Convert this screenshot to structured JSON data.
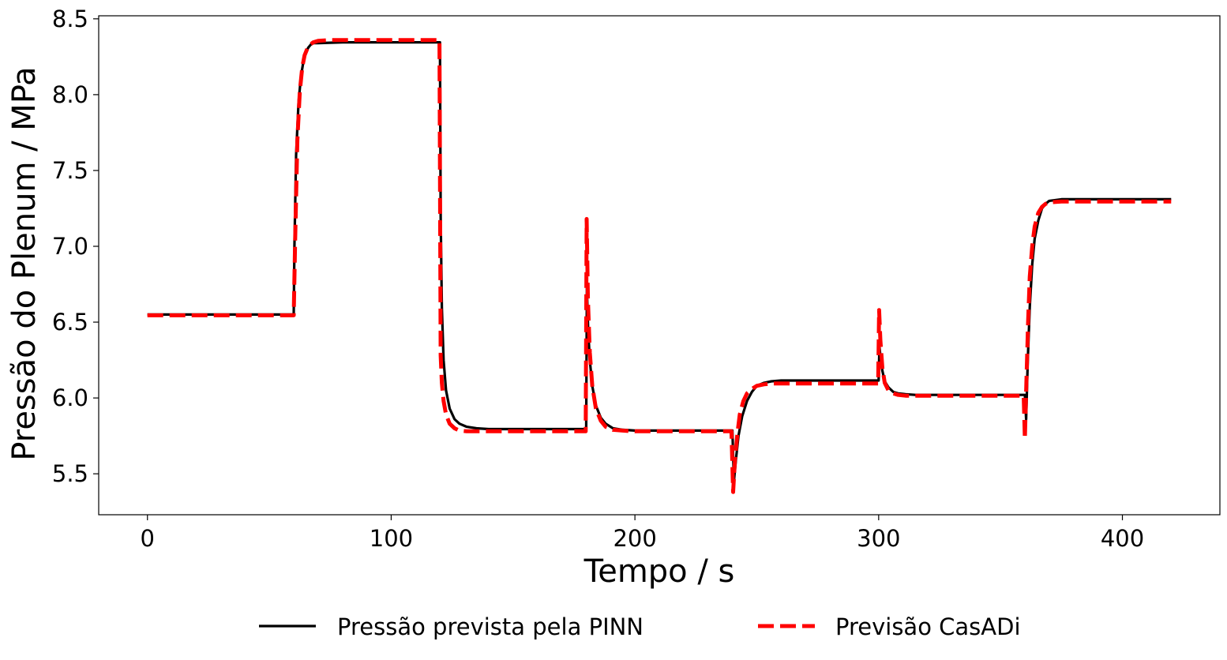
{
  "chart_data": {
    "type": "line",
    "title": "",
    "xlabel": "Tempo / s",
    "ylabel": "Pressão do Plenum / MPa",
    "xlim": [
      -20,
      440
    ],
    "ylim": [
      5.23,
      8.52
    ],
    "xticks": [
      0,
      100,
      200,
      300,
      400
    ],
    "xtick_labels": [
      "0",
      "100",
      "200",
      "300",
      "400"
    ],
    "yticks": [
      5.5,
      6.0,
      6.5,
      7.0,
      7.5,
      8.0,
      8.5
    ],
    "ytick_labels": [
      "5.5",
      "6.0",
      "6.5",
      "7.0",
      "7.5",
      "8.0",
      "8.5"
    ],
    "grid": false,
    "legend_position": "bottom-center",
    "series": [
      {
        "name": "Pressão prevista pela PINN",
        "color": "#000000",
        "style": "solid",
        "x": [
          0,
          60,
          60.3,
          61,
          62,
          63,
          64,
          65,
          66,
          67,
          68,
          70,
          80,
          100,
          119,
          120,
          120.3,
          120.8,
          121.5,
          122.5,
          124,
          126,
          128,
          131,
          135,
          140,
          150,
          170,
          179.8,
          180,
          180.3,
          180.8,
          181.5,
          182.5,
          184,
          186,
          188,
          191,
          195,
          200,
          210,
          230,
          239.6,
          240,
          240.6,
          241.5,
          242.5,
          244,
          246,
          248,
          250,
          253,
          256,
          260,
          270,
          290,
          299.8,
          300,
          300.3,
          300.8,
          301.5,
          302.5,
          304,
          306,
          308,
          311,
          315,
          320,
          340,
          359.5,
          360,
          360.5,
          361.2,
          362,
          363,
          364,
          365.5,
          367,
          368.5,
          370,
          375,
          385,
          400,
          420
        ],
        "y": [
          6.55,
          6.55,
          7.0,
          7.6,
          7.95,
          8.12,
          8.22,
          8.28,
          8.31,
          8.33,
          8.34,
          8.34,
          8.345,
          8.345,
          8.345,
          8.345,
          7.2,
          6.6,
          6.25,
          6.05,
          5.93,
          5.86,
          5.83,
          5.81,
          5.8,
          5.795,
          5.795,
          5.795,
          5.795,
          5.795,
          6.72,
          6.45,
          6.25,
          6.08,
          5.95,
          5.87,
          5.83,
          5.8,
          5.79,
          5.785,
          5.785,
          5.785,
          5.785,
          5.785,
          5.45,
          5.6,
          5.75,
          5.88,
          5.98,
          6.04,
          6.08,
          6.1,
          6.11,
          6.115,
          6.115,
          6.115,
          6.115,
          6.115,
          6.34,
          6.26,
          6.18,
          6.11,
          6.07,
          6.04,
          6.03,
          6.025,
          6.02,
          6.02,
          6.02,
          6.02,
          6.02,
          5.86,
          6.25,
          6.6,
          6.88,
          7.05,
          7.17,
          7.25,
          7.28,
          7.3,
          7.31,
          7.31,
          7.31,
          7.31
        ]
      },
      {
        "name": "Previsão CasADi",
        "color": "#ff0000",
        "style": "dashed",
        "x": [
          0,
          60,
          60.6,
          61.5,
          62.5,
          63.5,
          64.5,
          66,
          68,
          70,
          75,
          85,
          100,
          119.8,
          120.3,
          120.8,
          121.5,
          122.5,
          124,
          126,
          128,
          131,
          135,
          140,
          150,
          170,
          179.8,
          180.2,
          180.7,
          181.5,
          182.5,
          184,
          186,
          188,
          191,
          195,
          200,
          210,
          230,
          239.6,
          240.3,
          241,
          242,
          243,
          244.5,
          246,
          248,
          250,
          253,
          256,
          260,
          270,
          290,
          299.8,
          300.2,
          300.7,
          301.5,
          302.5,
          304,
          306,
          308,
          311,
          315,
          320,
          340,
          359.5,
          360,
          360.6,
          361.3,
          362,
          363,
          364,
          365.5,
          367,
          368.5,
          370,
          375,
          385,
          400,
          420
        ],
        "y": [
          6.545,
          6.545,
          7.04,
          7.7,
          8.02,
          8.18,
          8.26,
          8.32,
          8.345,
          8.355,
          8.36,
          8.36,
          8.36,
          8.36,
          6.28,
          6.1,
          5.98,
          5.89,
          5.83,
          5.8,
          5.785,
          5.78,
          5.78,
          5.78,
          5.78,
          5.78,
          5.78,
          7.18,
          6.65,
          6.3,
          6.08,
          5.93,
          5.85,
          5.81,
          5.79,
          5.785,
          5.78,
          5.78,
          5.78,
          5.78,
          5.38,
          5.58,
          5.76,
          5.89,
          5.98,
          6.03,
          6.06,
          6.08,
          6.09,
          6.095,
          6.095,
          6.095,
          6.095,
          6.095,
          6.58,
          6.38,
          6.2,
          6.1,
          6.05,
          6.03,
          6.02,
          6.015,
          6.015,
          6.015,
          6.015,
          6.015,
          5.73,
          6.1,
          6.5,
          6.8,
          7.0,
          7.13,
          7.22,
          7.26,
          7.28,
          7.29,
          7.295,
          7.295,
          7.295,
          7.295
        ]
      }
    ]
  }
}
